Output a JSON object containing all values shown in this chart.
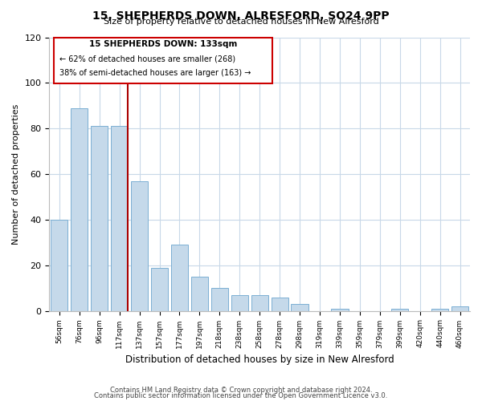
{
  "title": "15, SHEPHERDS DOWN, ALRESFORD, SO24 9PP",
  "subtitle": "Size of property relative to detached houses in New Alresford",
  "xlabel": "Distribution of detached houses by size in New Alresford",
  "ylabel": "Number of detached properties",
  "categories": [
    "56sqm",
    "76sqm",
    "96sqm",
    "117sqm",
    "137sqm",
    "157sqm",
    "177sqm",
    "197sqm",
    "218sqm",
    "238sqm",
    "258sqm",
    "278sqm",
    "298sqm",
    "319sqm",
    "339sqm",
    "359sqm",
    "379sqm",
    "399sqm",
    "420sqm",
    "440sqm",
    "460sqm"
  ],
  "values": [
    40,
    89,
    81,
    81,
    57,
    19,
    29,
    15,
    10,
    7,
    7,
    6,
    3,
    0,
    1,
    0,
    0,
    1,
    0,
    1,
    2
  ],
  "bar_color": "#c5d9ea",
  "bar_edge_color": "#7bafd4",
  "marker_line_color": "#aa0000",
  "marker_box_edge": "#cc0000",
  "annotation_line1": "15 SHEPHERDS DOWN: 133sqm",
  "annotation_line2": "← 62% of detached houses are smaller (268)",
  "annotation_line3": "38% of semi-detached houses are larger (163) →",
  "ylim": [
    0,
    120
  ],
  "yticks": [
    0,
    20,
    40,
    60,
    80,
    100,
    120
  ],
  "footer1": "Contains HM Land Registry data © Crown copyright and database right 2024.",
  "footer2": "Contains public sector information licensed under the Open Government Licence v3.0.",
  "background_color": "#ffffff",
  "grid_color": "#c8d8e8"
}
